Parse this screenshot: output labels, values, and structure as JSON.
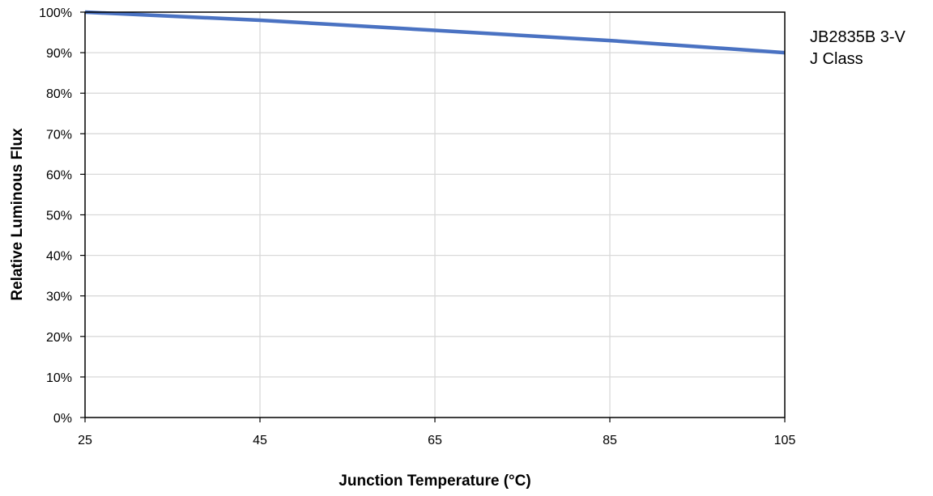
{
  "chart_data": {
    "type": "line",
    "title": "",
    "xlabel": "Junction Temperature (°C)",
    "ylabel": "Relative Luminous Flux",
    "xlim": [
      25,
      105
    ],
    "ylim": [
      0,
      1
    ],
    "x_ticks": [
      25,
      45,
      65,
      85,
      105
    ],
    "x_tick_labels": [
      "25",
      "45",
      "65",
      "85",
      "105"
    ],
    "y_ticks": [
      0,
      0.1,
      0.2,
      0.3,
      0.4,
      0.5,
      0.6,
      0.7,
      0.8,
      0.9,
      1.0
    ],
    "y_tick_labels": [
      "0%",
      "10%",
      "20%",
      "30%",
      "40%",
      "50%",
      "60%",
      "70%",
      "80%",
      "90%",
      "100%"
    ],
    "grid": true,
    "legend_position": "right",
    "series": [
      {
        "name": "JB2835B 3-V J Class",
        "legend_lines": [
          "JB2835B 3-V",
          "J Class"
        ],
        "color": "#4a72c2",
        "x": [
          25,
          45,
          65,
          85,
          105
        ],
        "y": [
          1.0,
          0.98,
          0.955,
          0.93,
          0.9
        ]
      }
    ]
  }
}
